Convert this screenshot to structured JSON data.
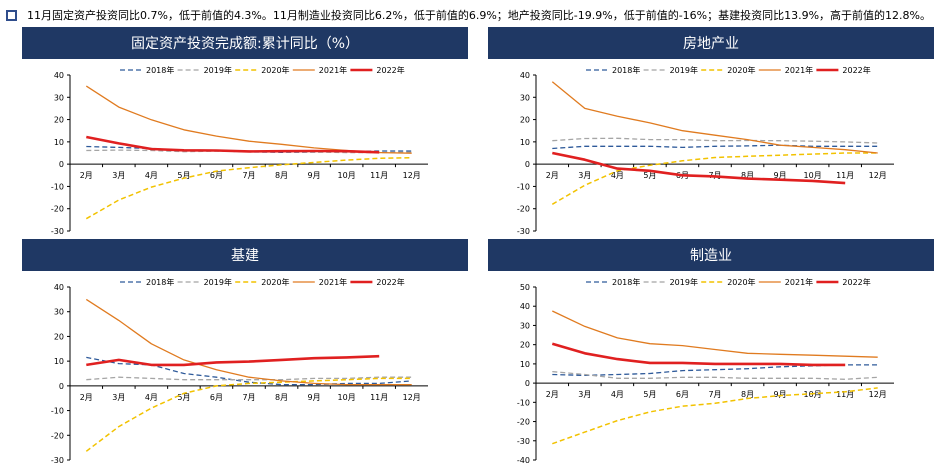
{
  "summary": "11月固定资产投资同比0.7%，低于前值的4.3%。11月制造业投资同比6.2%，低于前值的6.9%；地产投资同比-19.9%，低于前值的-16%；基建投资同比13.9%，高于前值的12.8%。",
  "colors": {
    "header_bg": "#1f3864",
    "s2018": "#2e5a9a",
    "s2019": "#a5a5a5",
    "s2020": "#f2c200",
    "s2021": "#e07b20",
    "s2022": "#e02020"
  },
  "chart_data": [
    {
      "type": "line",
      "title": "固定资产投资完成额:累计同比（%）",
      "categories": [
        "2月",
        "3月",
        "4月",
        "5月",
        "6月",
        "7月",
        "8月",
        "9月",
        "10月",
        "11月",
        "12月"
      ],
      "ylim": [
        -30,
        40
      ],
      "yticks": [
        40,
        30,
        20,
        10,
        0,
        -10,
        -20,
        -30
      ],
      "legend": "top",
      "series": [
        {
          "name": "2018年",
          "values": [
            7.9,
            7.5,
            7.0,
            6.1,
            6.0,
            5.5,
            5.3,
            5.4,
            5.7,
            5.9,
            5.9
          ]
        },
        {
          "name": "2019年",
          "values": [
            6.1,
            6.3,
            6.1,
            5.6,
            5.8,
            5.7,
            5.5,
            5.4,
            5.2,
            5.2,
            5.4
          ]
        },
        {
          "name": "2020年",
          "values": [
            -24.5,
            -16.1,
            -10.3,
            -6.3,
            -3.1,
            -1.6,
            -0.3,
            0.8,
            1.8,
            2.6,
            2.9
          ]
        },
        {
          "name": "2021年",
          "values": [
            35.0,
            25.6,
            19.9,
            15.4,
            12.6,
            10.3,
            8.9,
            7.3,
            6.1,
            5.2,
            4.9
          ]
        },
        {
          "name": "2022年",
          "values": [
            12.2,
            9.3,
            6.8,
            6.2,
            6.1,
            5.7,
            5.8,
            5.9,
            5.8,
            5.3,
            null
          ]
        }
      ]
    },
    {
      "type": "line",
      "title": "房地产业",
      "categories": [
        "2月",
        "3月",
        "4月",
        "5月",
        "6月",
        "7月",
        "8月",
        "9月",
        "10月",
        "11月",
        "12月"
      ],
      "ylim": [
        -30,
        40
      ],
      "yticks": [
        40,
        30,
        20,
        10,
        0,
        -10,
        -20,
        -30
      ],
      "legend": "top",
      "series": [
        {
          "name": "2018年",
          "values": [
            7.0,
            8.0,
            8.0,
            8.0,
            7.5,
            8.0,
            8.2,
            8.5,
            8.0,
            8.0,
            8.0
          ]
        },
        {
          "name": "2019年",
          "values": [
            10.5,
            11.5,
            11.6,
            11.0,
            11.0,
            10.5,
            10.6,
            10.5,
            10.3,
            10.0,
            9.5
          ]
        },
        {
          "name": "2020年",
          "values": [
            -18.0,
            -9.5,
            -3.0,
            -0.5,
            1.5,
            3.0,
            3.5,
            4.0,
            4.5,
            5.0,
            5.0
          ]
        },
        {
          "name": "2021年",
          "values": [
            37.0,
            25.0,
            21.5,
            18.5,
            15.0,
            13.0,
            11.0,
            8.5,
            7.5,
            6.5,
            5.0
          ]
        },
        {
          "name": "2022年",
          "values": [
            5.0,
            2.0,
            -2.0,
            -3.0,
            -5.0,
            -5.5,
            -6.5,
            -7.0,
            -7.5,
            -8.5,
            null
          ]
        }
      ]
    },
    {
      "type": "line",
      "title": "基建",
      "categories": [
        "2月",
        "3月",
        "4月",
        "5月",
        "6月",
        "7月",
        "8月",
        "9月",
        "10月",
        "11月",
        "12月"
      ],
      "ylim": [
        -30,
        40
      ],
      "yticks": [
        40,
        30,
        20,
        10,
        0,
        -10,
        -20,
        -30
      ],
      "legend": "top",
      "series": [
        {
          "name": "2018年",
          "values": [
            11.5,
            9.0,
            8.5,
            5.0,
            3.5,
            1.5,
            0.5,
            0.5,
            1.0,
            1.0,
            2.0
          ]
        },
        {
          "name": "2019年",
          "values": [
            2.5,
            3.5,
            3.0,
            2.5,
            2.5,
            2.5,
            2.5,
            3.0,
            3.0,
            3.5,
            3.5
          ]
        },
        {
          "name": "2020年",
          "values": [
            -26.5,
            -16.5,
            -9.0,
            -3.0,
            0.0,
            1.0,
            1.5,
            2.0,
            2.5,
            3.0,
            3.0
          ]
        },
        {
          "name": "2021年",
          "values": [
            35.0,
            26.5,
            17.0,
            10.5,
            6.5,
            3.5,
            2.0,
            1.0,
            0.5,
            0.5,
            0.5
          ]
        },
        {
          "name": "2022年",
          "values": [
            8.5,
            10.5,
            8.5,
            8.5,
            9.5,
            9.8,
            10.5,
            11.2,
            11.5,
            12.0,
            null
          ]
        }
      ]
    },
    {
      "type": "line",
      "title": "制造业",
      "categories": [
        "2月",
        "3月",
        "4月",
        "5月",
        "6月",
        "7月",
        "8月",
        "9月",
        "10月",
        "11月",
        "12月"
      ],
      "ylim": [
        -40,
        50
      ],
      "yticks": [
        50,
        40,
        30,
        20,
        10,
        0,
        -10,
        -20,
        -30,
        -40
      ],
      "legend": "top",
      "series": [
        {
          "name": "2018年",
          "values": [
            4.5,
            4.0,
            4.5,
            5.0,
            6.5,
            7.0,
            7.5,
            8.5,
            9.0,
            9.5,
            9.5
          ]
        },
        {
          "name": "2019年",
          "values": [
            6.0,
            4.5,
            2.5,
            2.5,
            3.0,
            3.0,
            2.5,
            2.5,
            2.5,
            2.0,
            3.0
          ]
        },
        {
          "name": "2020年",
          "values": [
            -31.5,
            -25.5,
            -19.5,
            -15.0,
            -12.0,
            -10.5,
            -8.0,
            -6.5,
            -5.5,
            -4.5,
            -2.5
          ]
        },
        {
          "name": "2021年",
          "values": [
            37.5,
            29.5,
            23.5,
            20.5,
            19.5,
            17.5,
            15.5,
            15.0,
            14.5,
            14.0,
            13.5
          ]
        },
        {
          "name": "2022年",
          "values": [
            20.5,
            15.5,
            12.5,
            10.5,
            10.5,
            10.0,
            10.0,
            10.0,
            9.5,
            9.5,
            null
          ]
        }
      ]
    }
  ]
}
